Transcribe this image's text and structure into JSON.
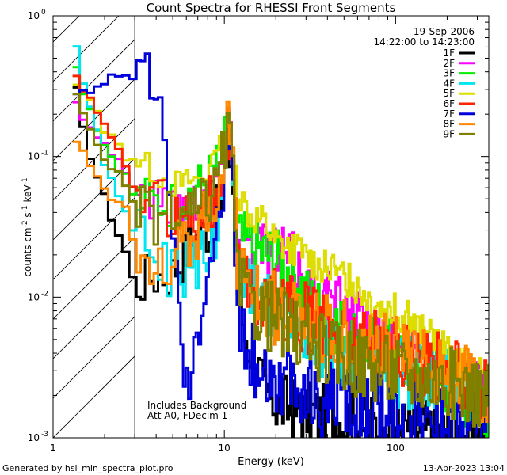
{
  "chart_data": {
    "type": "line",
    "title": "Count Spectra for RHESSI Front Segments",
    "xlabel": "Energy (keV)",
    "ylabel_base": "counts cm",
    "ylabel_exp1": "-2",
    "ylabel_mid": " s",
    "ylabel_exp2": "-1",
    "ylabel_end": " keV",
    "ylabel_exp3": "-1",
    "xscale": "log",
    "yscale": "log",
    "xlim": [
      1,
      350
    ],
    "ylim": [
      0.001,
      1
    ],
    "x_ticks": [
      {
        "value": 1,
        "label": "1"
      },
      {
        "value": 10,
        "label": "10"
      },
      {
        "value": 100,
        "label": "100"
      }
    ],
    "y_ticks": [
      {
        "value": 1,
        "base": "10",
        "exp": "0"
      },
      {
        "value": 0.1,
        "base": "10",
        "exp": "-1"
      },
      {
        "value": 0.01,
        "base": "10",
        "exp": "-2"
      },
      {
        "value": 0.001,
        "base": "10",
        "exp": "-3"
      }
    ],
    "date": "19-Sep-2006",
    "time_range": "14:22:00 to 14:23:00",
    "annotation_line1": "Includes Background",
    "annotation_line2": "Att A0, FDecim 1",
    "excluded_region_max_kev": 3,
    "line_peak": {
      "center_kev": 10.5,
      "width_dex": 0.035
    },
    "series": [
      {
        "name": "1F",
        "color": "#000000",
        "knots": [
          [
            1.3,
            0.4
          ],
          [
            1.5,
            0.15
          ],
          [
            2,
            0.05
          ],
          [
            2.7,
            0.02
          ],
          [
            3,
            0.012
          ],
          [
            3.6,
            0.014
          ],
          [
            5,
            0.015
          ],
          [
            6.5,
            0.025
          ],
          [
            8,
            0.03
          ],
          [
            9.5,
            0.045
          ],
          [
            10.5,
            0.12
          ],
          [
            11.3,
            0.03
          ],
          [
            12,
            0.012
          ],
          [
            13.5,
            0.005
          ],
          [
            15,
            0.004
          ],
          [
            17,
            0.002
          ],
          [
            20,
            0.0018
          ],
          [
            25,
            0.0016
          ],
          [
            30,
            0.0015
          ],
          [
            40,
            0.0014
          ],
          [
            60,
            0.0013
          ],
          [
            100,
            0.0012
          ],
          [
            200,
            0.0011
          ],
          [
            350,
            0.001
          ]
        ],
        "peak": 0.12,
        "jitter": 0.18
      },
      {
        "name": "2F",
        "color": "#ff00ff",
        "knots": [
          [
            1.3,
            0.25
          ],
          [
            1.5,
            0.2
          ],
          [
            2,
            0.12
          ],
          [
            2.7,
            0.08
          ],
          [
            3,
            0.055
          ],
          [
            5,
            0.045
          ],
          [
            7,
            0.05
          ],
          [
            9,
            0.07
          ],
          [
            10.5,
            0.14
          ],
          [
            11.3,
            0.05
          ],
          [
            12,
            0.03
          ],
          [
            15,
            0.026
          ],
          [
            20,
            0.022
          ],
          [
            25,
            0.018
          ],
          [
            30,
            0.012
          ],
          [
            40,
            0.01
          ],
          [
            60,
            0.007
          ],
          [
            80,
            0.005
          ],
          [
            120,
            0.004
          ],
          [
            200,
            0.003
          ],
          [
            350,
            0.002
          ]
        ],
        "peak": 0.16,
        "jitter": 0.16
      },
      {
        "name": "3F",
        "color": "#00ee00",
        "knots": [
          [
            1.3,
            0.5
          ],
          [
            1.5,
            0.3
          ],
          [
            2,
            0.12
          ],
          [
            2.7,
            0.07
          ],
          [
            3,
            0.05
          ],
          [
            5,
            0.045
          ],
          [
            7,
            0.06
          ],
          [
            9,
            0.08
          ],
          [
            10.5,
            0.15
          ],
          [
            11.3,
            0.035
          ],
          [
            12,
            0.025
          ],
          [
            15,
            0.022
          ],
          [
            20,
            0.018
          ],
          [
            25,
            0.015
          ],
          [
            30,
            0.01
          ],
          [
            40,
            0.007
          ],
          [
            60,
            0.005
          ],
          [
            100,
            0.004
          ],
          [
            150,
            0.003
          ],
          [
            250,
            0.002
          ],
          [
            350,
            0.0016
          ]
        ],
        "peak": 0.15,
        "jitter": 0.18
      },
      {
        "name": "4F",
        "color": "#00e5ee",
        "knots": [
          [
            1.3,
            0.8
          ],
          [
            1.5,
            0.35
          ],
          [
            2,
            0.09
          ],
          [
            2.7,
            0.04
          ],
          [
            3,
            0.028
          ],
          [
            4,
            0.02
          ],
          [
            5,
            0.014
          ],
          [
            7,
            0.018
          ],
          [
            9,
            0.025
          ],
          [
            10.5,
            0.1
          ],
          [
            11.3,
            0.03
          ],
          [
            12,
            0.015
          ],
          [
            14,
            0.012
          ],
          [
            17,
            0.01
          ],
          [
            20,
            0.008
          ],
          [
            30,
            0.005
          ],
          [
            50,
            0.004
          ],
          [
            100,
            0.003
          ],
          [
            200,
            0.0025
          ],
          [
            350,
            0.002
          ]
        ],
        "peak": 0.12,
        "jitter": 0.2
      },
      {
        "name": "5F",
        "color": "#dddd00",
        "knots": [
          [
            1.3,
            0.35
          ],
          [
            1.5,
            0.3
          ],
          [
            2,
            0.16
          ],
          [
            2.7,
            0.1
          ],
          [
            3,
            0.1
          ],
          [
            5,
            0.065
          ],
          [
            7,
            0.07
          ],
          [
            9,
            0.09
          ],
          [
            10.5,
            0.17
          ],
          [
            11,
            0.09
          ],
          [
            12,
            0.06
          ],
          [
            14,
            0.04
          ],
          [
            17,
            0.035
          ],
          [
            20,
            0.025
          ],
          [
            25,
            0.022
          ],
          [
            30,
            0.02
          ],
          [
            40,
            0.016
          ],
          [
            60,
            0.012
          ],
          [
            80,
            0.009
          ],
          [
            120,
            0.007
          ],
          [
            200,
            0.004
          ],
          [
            350,
            0.0025
          ]
        ],
        "peak": 0.17,
        "jitter": 0.1
      },
      {
        "name": "6F",
        "color": "#ff2200",
        "knots": [
          [
            1.3,
            0.45
          ],
          [
            1.5,
            0.3
          ],
          [
            2,
            0.16
          ],
          [
            2.7,
            0.08
          ],
          [
            3,
            0.06
          ],
          [
            5,
            0.04
          ],
          [
            7,
            0.04
          ],
          [
            9,
            0.05
          ],
          [
            10.5,
            0.16
          ],
          [
            11.3,
            0.05
          ],
          [
            12,
            0.015
          ],
          [
            14,
            0.011
          ],
          [
            17,
            0.01
          ],
          [
            20,
            0.009
          ],
          [
            25,
            0.008
          ],
          [
            30,
            0.007
          ],
          [
            40,
            0.006
          ],
          [
            60,
            0.005
          ],
          [
            100,
            0.004
          ],
          [
            200,
            0.003
          ],
          [
            350,
            0.002
          ]
        ],
        "peak": 0.16,
        "jitter": 0.2
      },
      {
        "name": "7F",
        "color": "#0000dd",
        "knots": [
          [
            1.3,
            0.3
          ],
          [
            1.5,
            0.3
          ],
          [
            2,
            0.32
          ],
          [
            2.5,
            0.4
          ],
          [
            3,
            0.38
          ],
          [
            3.6,
            0.35
          ],
          [
            4.2,
            0.2
          ],
          [
            4.8,
            0.08
          ],
          [
            5.2,
            0.02
          ],
          [
            5.6,
            0.005
          ],
          [
            6,
            0.0025
          ],
          [
            6.5,
            0.003
          ],
          [
            7,
            0.006
          ],
          [
            8,
            0.02
          ],
          [
            9,
            0.03
          ],
          [
            10.5,
            0.11
          ],
          [
            11.3,
            0.02
          ],
          [
            12,
            0.008
          ],
          [
            13,
            0.005
          ],
          [
            15,
            0.0035
          ],
          [
            18,
            0.003
          ],
          [
            22,
            0.0025
          ],
          [
            30,
            0.002
          ],
          [
            45,
            0.0018
          ],
          [
            60,
            0.0016
          ],
          [
            80,
            0.0015
          ],
          [
            120,
            0.0013
          ],
          [
            200,
            0.0012
          ],
          [
            350,
            0.001
          ]
        ],
        "peak": 0.11,
        "jitter": 0.22
      },
      {
        "name": "8F",
        "color": "#ff8800",
        "knots": [
          [
            1.3,
            0.12
          ],
          [
            1.5,
            0.11
          ],
          [
            2,
            0.06
          ],
          [
            2.7,
            0.04
          ],
          [
            3,
            0.025
          ],
          [
            4,
            0.018
          ],
          [
            5,
            0.02
          ],
          [
            7,
            0.03
          ],
          [
            9,
            0.05
          ],
          [
            10.5,
            0.18
          ],
          [
            11.3,
            0.04
          ],
          [
            12,
            0.015
          ],
          [
            14,
            0.012
          ],
          [
            17,
            0.01
          ],
          [
            20,
            0.008
          ],
          [
            30,
            0.007
          ],
          [
            40,
            0.006
          ],
          [
            60,
            0.005
          ],
          [
            100,
            0.004
          ],
          [
            200,
            0.003
          ],
          [
            350,
            0.002
          ]
        ],
        "peak": 0.18,
        "jitter": 0.2
      },
      {
        "name": "9F",
        "color": "#808000",
        "knots": [
          [
            1.3,
            0.3
          ],
          [
            1.5,
            0.2
          ],
          [
            2,
            0.1
          ],
          [
            2.7,
            0.06
          ],
          [
            3,
            0.04
          ],
          [
            5,
            0.035
          ],
          [
            7,
            0.04
          ],
          [
            9,
            0.06
          ],
          [
            10.5,
            0.15
          ],
          [
            11.3,
            0.035
          ],
          [
            12,
            0.012
          ],
          [
            14,
            0.009
          ],
          [
            17,
            0.008
          ],
          [
            20,
            0.007
          ],
          [
            30,
            0.005
          ],
          [
            40,
            0.004
          ],
          [
            60,
            0.0035
          ],
          [
            100,
            0.003
          ],
          [
            200,
            0.0025
          ],
          [
            350,
            0.002
          ]
        ],
        "peak": 0.15,
        "jitter": 0.2
      }
    ]
  },
  "footer": {
    "generated_by": "Generated by hsi_min_spectra_plot.pro",
    "timestamp": "13-Apr-2023 13:04"
  }
}
